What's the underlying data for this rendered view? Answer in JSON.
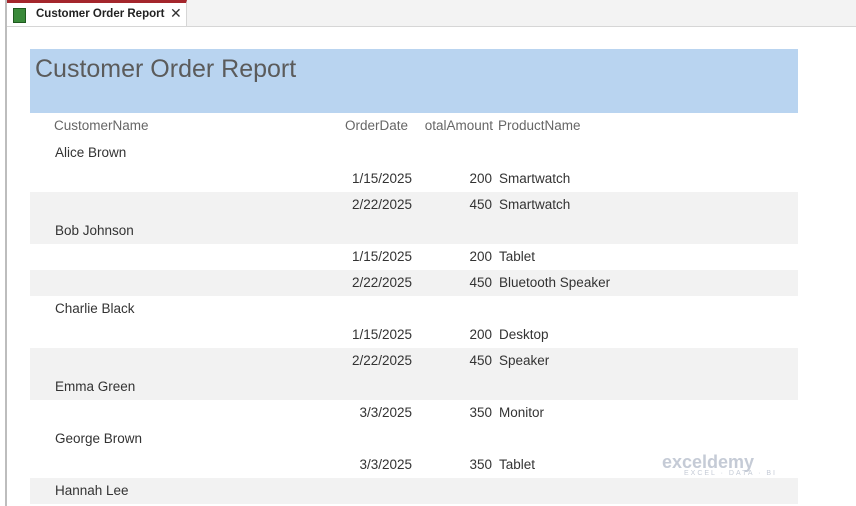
{
  "tab": {
    "label": "Customer Order Report",
    "icon": "report-icon",
    "close": "✕"
  },
  "report": {
    "title": "Customer Order Report",
    "columns": {
      "customer": "CustomerName",
      "date": "OrderDate",
      "amount": "otalAmount",
      "product": "ProductName"
    },
    "rows": [
      {
        "name": "Alice Brown"
      },
      {
        "date": "1/15/2025",
        "amount": "200",
        "product": "Smartwatch"
      },
      {
        "date": "2/22/2025",
        "amount": "450",
        "product": "Smartwatch"
      },
      {
        "name": "Bob Johnson"
      },
      {
        "date": "1/15/2025",
        "amount": "200",
        "product": "Tablet"
      },
      {
        "date": "2/22/2025",
        "amount": "450",
        "product": "Bluetooth Speaker"
      },
      {
        "name": "Charlie Black"
      },
      {
        "date": "1/15/2025",
        "amount": "200",
        "product": "Desktop"
      },
      {
        "date": "2/22/2025",
        "amount": "450",
        "product": "Speaker"
      },
      {
        "name": "Emma Green"
      },
      {
        "date": "3/3/2025",
        "amount": "350",
        "product": "Monitor"
      },
      {
        "name": "George Brown"
      },
      {
        "date": "3/3/2025",
        "amount": "350",
        "product": "Tablet"
      },
      {
        "name": "Hannah Lee"
      }
    ]
  },
  "watermark": {
    "brand": "exceldemy",
    "tagline": "EXCEL · DATA · BI"
  },
  "colors": {
    "header_bg": "#b9d4f0",
    "alt_row": "#f2f2f2",
    "tab_accent": "#a4262c"
  }
}
